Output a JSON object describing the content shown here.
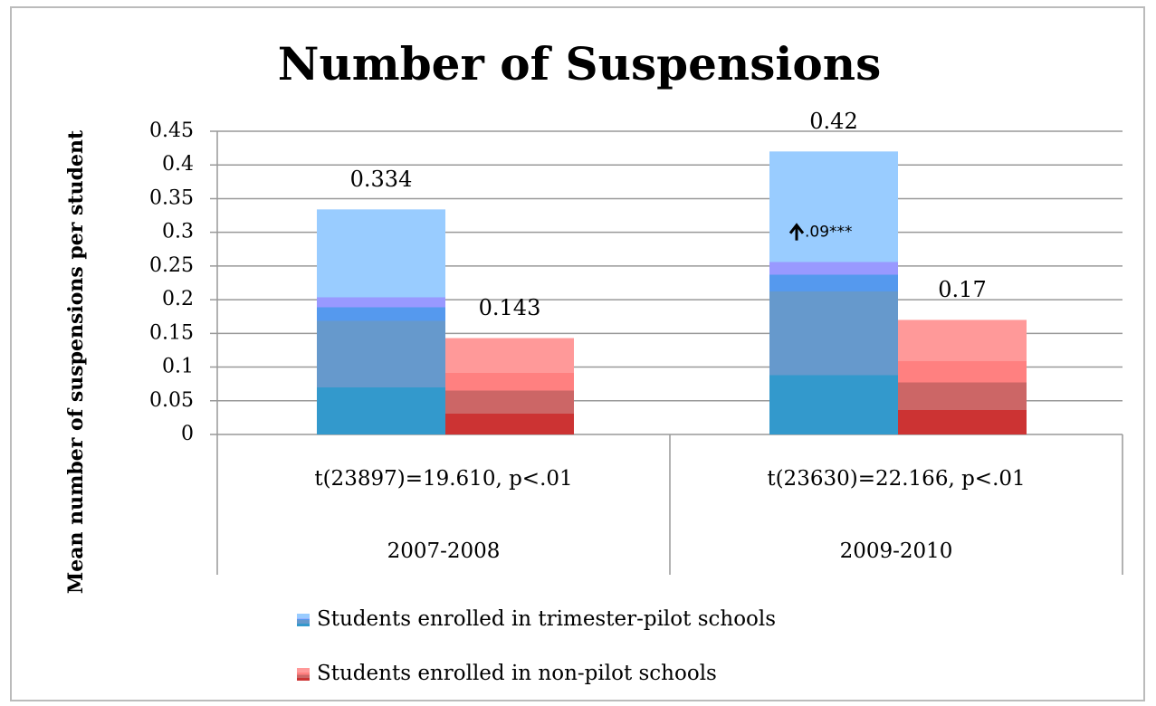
{
  "chart_data": {
    "type": "bar",
    "title": "Number of Suspensions",
    "y_label": "Mean number of suspensions per student",
    "categories": [
      "2007-2008",
      "2009-2010"
    ],
    "category_notes": [
      "t(23897)=19.610, p<.01",
      "t(23630)=22.166, p<.01"
    ],
    "series": [
      {
        "name": "Students enrolled in trimester-pilot schools",
        "color": "#99ccff",
        "values": [
          0.334,
          0.42
        ]
      },
      {
        "name": "Students enrolled in non-pilot schools",
        "color": "#ff9999",
        "values": [
          0.143,
          0.17
        ]
      }
    ],
    "annotations": [
      ".09***"
    ],
    "ylim": [
      0,
      0.45
    ],
    "yticks": [
      0,
      0.05,
      0.1,
      0.15,
      0.2,
      0.25,
      0.3,
      0.35,
      0.4,
      0.45
    ],
    "grid": true,
    "legend": "bottom"
  }
}
